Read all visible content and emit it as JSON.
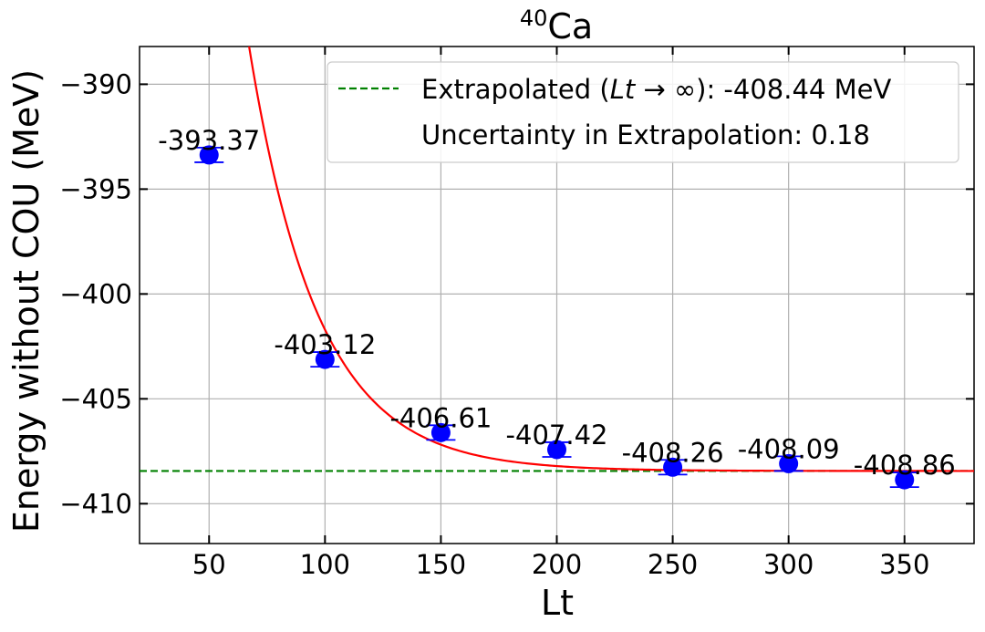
{
  "chart_data": {
    "type": "scatter",
    "title_sup": "40",
    "title_main": "Ca",
    "xlabel": "Lt",
    "ylabel": "Energy without COU (MeV)",
    "xlim": [
      20,
      380
    ],
    "ylim": [
      -411.9,
      -388.2
    ],
    "xticks": [
      50,
      100,
      150,
      200,
      250,
      300,
      350
    ],
    "yticks": [
      -390,
      -395,
      -400,
      -405,
      -410
    ],
    "ytick_labels": [
      "−390",
      "−395",
      "−400",
      "−405",
      "−410"
    ],
    "grid": true,
    "legend_position": "top-right",
    "series": [
      {
        "name": "data",
        "color": "#0000ff",
        "x": [
          50,
          100,
          150,
          200,
          250,
          300,
          350
        ],
        "y": [
          -393.37,
          -403.12,
          -406.61,
          -407.42,
          -408.26,
          -408.09,
          -408.86
        ],
        "yerr": [
          0.35,
          0.35,
          0.35,
          0.35,
          0.35,
          0.35,
          0.35
        ],
        "labels": [
          "-393.37",
          "-403.12",
          "-406.61",
          "-407.42",
          "-408.26",
          "-408.09",
          "-408.86"
        ]
      }
    ],
    "fit": {
      "color": "#ff0000",
      "model": "exponential",
      "asymptote": -408.44,
      "amplitude": 36.15,
      "decay": 0.0336
    },
    "extrapolated_line": {
      "y": -408.44,
      "color": "#008000",
      "label_prefix": "Extrapolated (",
      "label_var": "Lt",
      "label_arrow": " → ∞",
      "label_suffix": "): -408.44 MeV"
    },
    "uncertainty_label": "Uncertainty in Extrapolation: 0.18"
  }
}
